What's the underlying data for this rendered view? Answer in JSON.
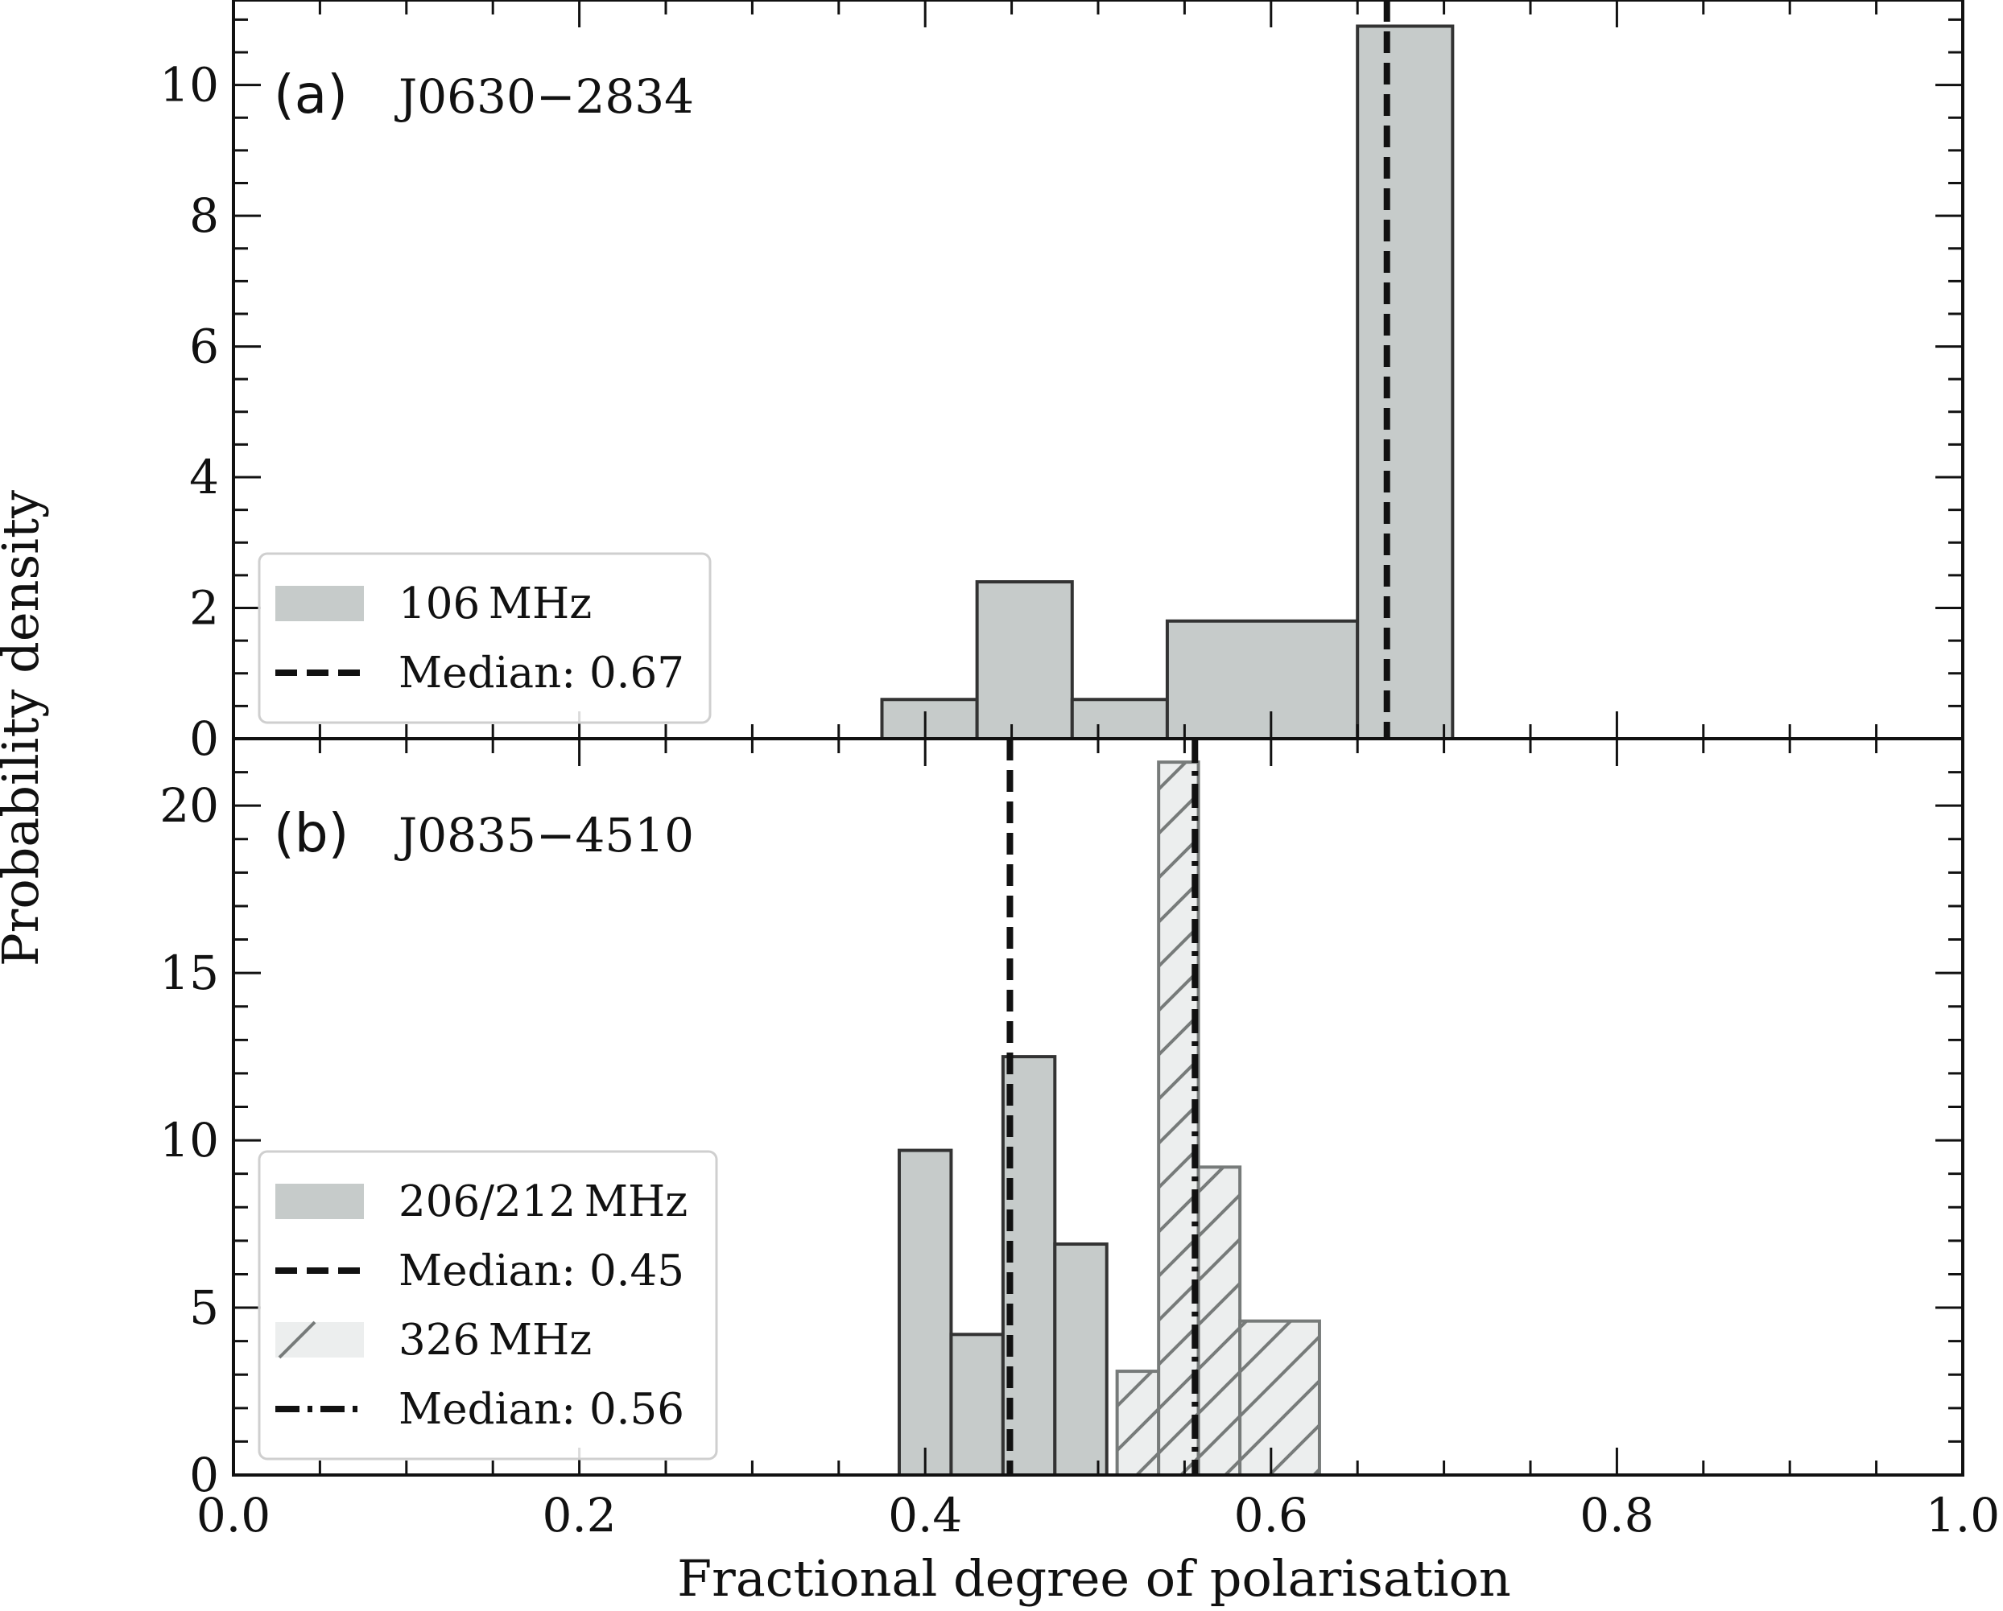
{
  "figure": {
    "xlabel": "Fractional degree of polarisation",
    "ylabel": "Probability density"
  },
  "chart_data": [
    {
      "type": "histogram",
      "panel_label": "(a)",
      "title": "J0630−2834",
      "xlim": [
        0.0,
        1.0
      ],
      "ylim": [
        0,
        11.3
      ],
      "xticks": [
        "0.0",
        "0.2",
        "0.4",
        "0.6",
        "0.8",
        "1.0"
      ],
      "yticks": [
        "0",
        "2",
        "4",
        "6",
        "8",
        "10"
      ],
      "ytick_values": [
        0,
        2,
        4,
        6,
        8,
        10
      ],
      "yminor_step": 0.5,
      "legend_position": "lower-left",
      "series": [
        {
          "name": "106 MHz",
          "style": "solid",
          "color": "#c6cbca",
          "edge": "#333333",
          "bins": [
            {
              "x0": 0.375,
              "x1": 0.43,
              "y": 0.6
            },
            {
              "x0": 0.43,
              "x1": 0.485,
              "y": 2.4
            },
            {
              "x0": 0.485,
              "x1": 0.54,
              "y": 0.6
            },
            {
              "x0": 0.54,
              "x1": 0.65,
              "y": 1.8
            },
            {
              "x0": 0.65,
              "x1": 0.705,
              "y": 10.9
            }
          ]
        }
      ],
      "medians": [
        {
          "name": "Median: 0.67",
          "value": 0.667,
          "style": "dashed"
        }
      ],
      "legend": [
        {
          "kind": "patch-solid",
          "label": "106 MHz"
        },
        {
          "kind": "line-dashed",
          "label": "Median: 0.67"
        }
      ]
    },
    {
      "type": "histogram",
      "panel_label": "(b)",
      "title": "J0835−4510",
      "xlim": [
        0.0,
        1.0
      ],
      "ylim": [
        0,
        22
      ],
      "xticks": [
        "0.0",
        "0.2",
        "0.4",
        "0.6",
        "0.8",
        "1.0"
      ],
      "yticks": [
        "0",
        "5",
        "10",
        "15",
        "20"
      ],
      "ytick_values": [
        0,
        5,
        10,
        15,
        20
      ],
      "yminor_step": 1,
      "legend_position": "lower-left",
      "series": [
        {
          "name": "206/212 MHz",
          "style": "solid",
          "color": "#c6cbca",
          "edge": "#333333",
          "bins": [
            {
              "x0": 0.385,
              "x1": 0.415,
              "y": 9.7
            },
            {
              "x0": 0.415,
              "x1": 0.445,
              "y": 4.2
            },
            {
              "x0": 0.445,
              "x1": 0.475,
              "y": 12.5
            },
            {
              "x0": 0.475,
              "x1": 0.505,
              "y": 6.9
            }
          ]
        },
        {
          "name": "326 MHz",
          "style": "hatched",
          "color": "#eceeee",
          "edge": "#777b7a",
          "bins": [
            {
              "x0": 0.511,
              "x1": 0.535,
              "y": 3.1
            },
            {
              "x0": 0.535,
              "x1": 0.558,
              "y": 21.3
            },
            {
              "x0": 0.558,
              "x1": 0.582,
              "y": 9.2
            },
            {
              "x0": 0.582,
              "x1": 0.628,
              "y": 4.6
            }
          ]
        }
      ],
      "medians": [
        {
          "name": "Median: 0.45",
          "value": 0.449,
          "style": "dashed"
        },
        {
          "name": "Median: 0.56",
          "value": 0.556,
          "style": "dashdot"
        }
      ],
      "legend": [
        {
          "kind": "patch-solid",
          "label": "206/212 MHz"
        },
        {
          "kind": "line-dashed",
          "label": "Median: 0.45"
        },
        {
          "kind": "patch-hatched",
          "label": "326 MHz"
        },
        {
          "kind": "line-dashdot",
          "label": "Median: 0.56"
        }
      ]
    }
  ]
}
